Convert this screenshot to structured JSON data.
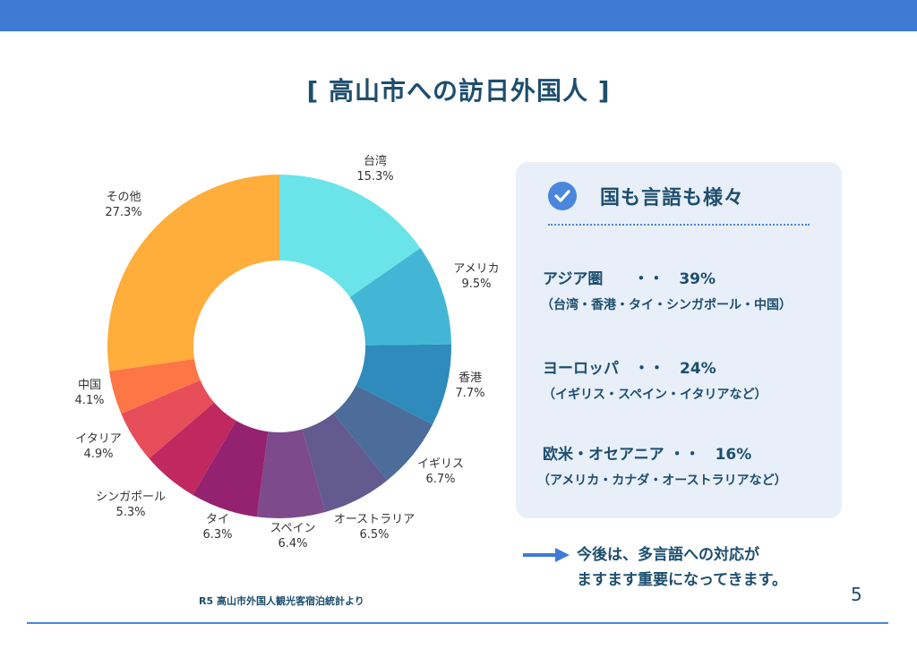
{
  "header": {
    "bar_color": "#3f7bd4"
  },
  "title": "[ 高山市への訪日外国人 ]",
  "chart_data": {
    "type": "pie",
    "subtype": "donut",
    "title": "高山市への訪日外国人",
    "categories": [
      "台湾",
      "アメリカ",
      "香港",
      "イギリス",
      "オーストラリア",
      "スペイン",
      "タイ",
      "シンガポール",
      "イタリア",
      "中国",
      "その他"
    ],
    "values": [
      15.3,
      9.5,
      7.7,
      6.7,
      6.5,
      6.4,
      6.3,
      5.3,
      4.9,
      4.1,
      27.3
    ],
    "labels": [
      "15.3%",
      "9.5%",
      "7.7%",
      "6.7%",
      "6.5%",
      "6.4%",
      "6.3%",
      "5.3%",
      "4.9%",
      "4.1%",
      "27.3%"
    ],
    "colors": [
      "#6ae4e8",
      "#43b6d6",
      "#2e8bbb",
      "#4c6c99",
      "#635a8f",
      "#7d4a8b",
      "#952271",
      "#c0295f",
      "#e74e5a",
      "#fd7646",
      "#ffad3b"
    ],
    "legend": "none (labels outside slices)",
    "start_angle": "12 o'clock, clockwise"
  },
  "card": {
    "title": "国も言語も様々",
    "icon": "check-circle-icon",
    "regions": [
      {
        "main": "アジア圏　　・・　39%",
        "sub": "（台湾・香港・タイ・シンガポール・中国）"
      },
      {
        "main": "ヨーロッパ　・・　24%",
        "sub": "（イギリス・スペイン・イタリアなど）"
      },
      {
        "main": "欧米・オセアニア ・・　16%",
        "sub": "（アメリカ・カナダ・オーストラリアなど）"
      }
    ]
  },
  "note": {
    "icon": "arrow-right-icon",
    "line1": "今後は、多言語への対応が",
    "line2": "ますます重要になってきます。"
  },
  "source": "R5 高山市外国人観光客宿泊統計より",
  "page_number": "5"
}
